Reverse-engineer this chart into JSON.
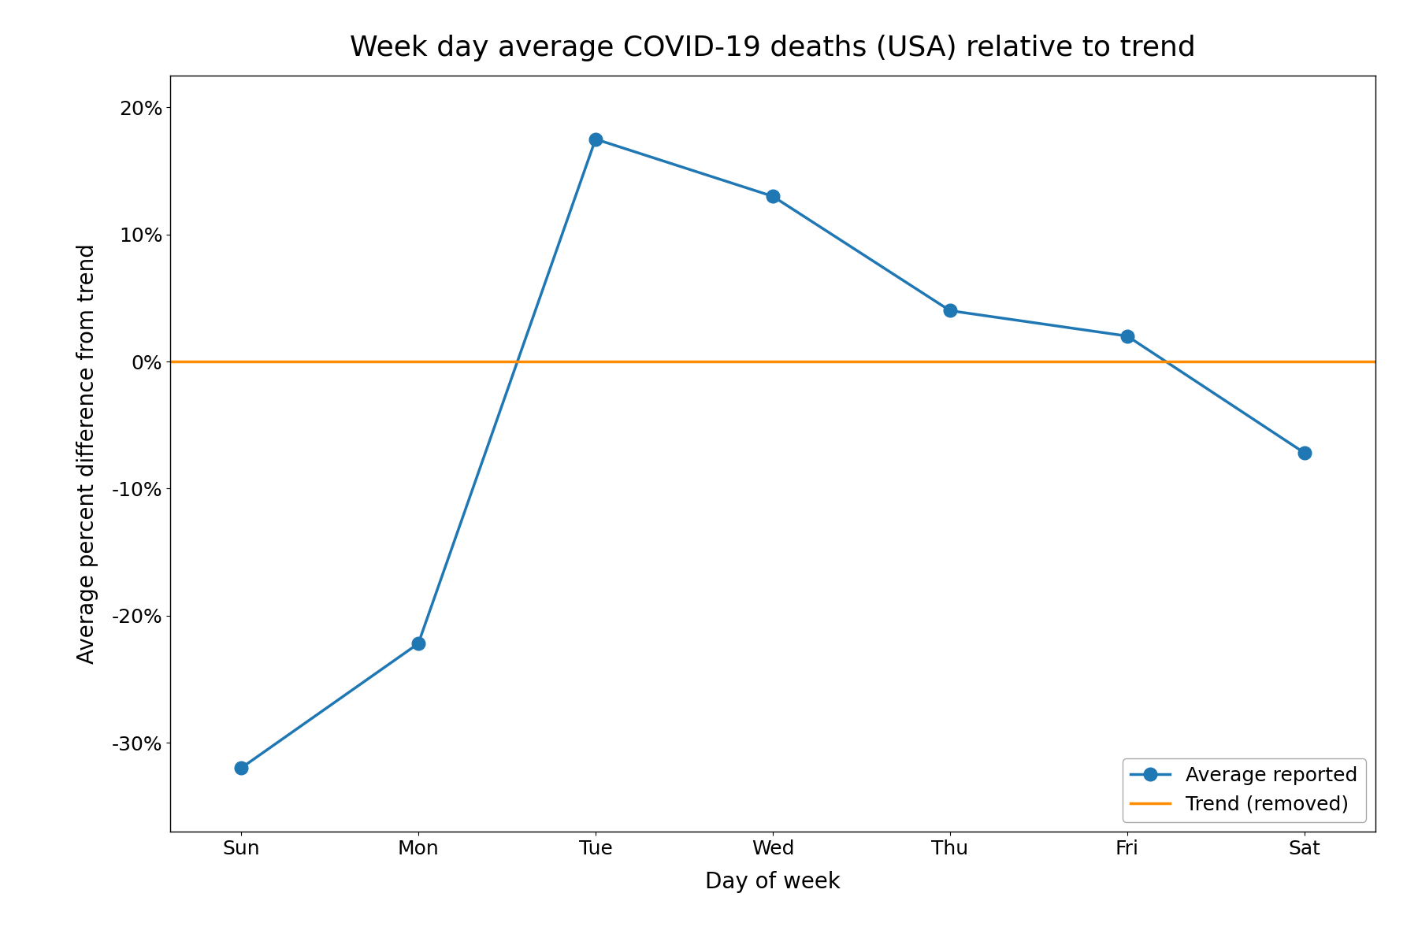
{
  "title": "Week day average COVID-19 deaths (USA) relative to trend",
  "xlabel": "Day of week",
  "ylabel": "Average percent difference from trend",
  "days": [
    "Sun",
    "Mon",
    "Tue",
    "Wed",
    "Thu",
    "Fri",
    "Sat"
  ],
  "values": [
    -0.32,
    -0.222,
    0.175,
    0.13,
    0.04,
    0.02,
    -0.072
  ],
  "line_color": "#1f77b4",
  "trend_color": "#ff8c00",
  "marker": "o",
  "markersize": 12,
  "linewidth": 2.5,
  "trend_linewidth": 2.5,
  "ylim": [
    -0.37,
    0.225
  ],
  "yticks": [
    -0.3,
    -0.2,
    -0.1,
    0.0,
    0.1,
    0.2
  ],
  "legend_labels": [
    "Average reported",
    "Trend (removed)"
  ],
  "title_fontsize": 26,
  "label_fontsize": 20,
  "tick_fontsize": 18,
  "legend_fontsize": 18,
  "background_color": "#ffffff"
}
